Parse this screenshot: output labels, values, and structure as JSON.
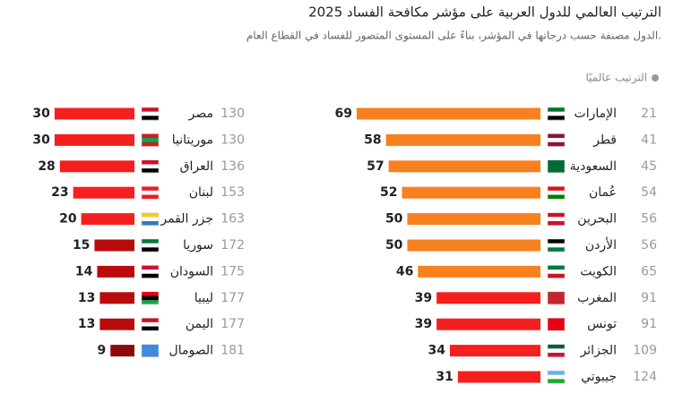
{
  "header": {
    "title": "الترتيب العالمي للدول العربية على مؤشر مكافحة الفساد 2025",
    "subtitle": "الدول مصنفة حسب درجاتها في المؤشر، بناءً على المستوى المتصور للفساد في القطاع العام.",
    "legend": "الترتيب عالميًا"
  },
  "chart_data": [
    {
      "type": "bar",
      "xlim": [
        0,
        70
      ],
      "categories": [
        "الإمارات",
        "قطر",
        "السعودية",
        "عُمان",
        "البحرين",
        "الأردن",
        "الكويت",
        "المغرب",
        "تونس",
        "الجزائر",
        "جيبوتي"
      ],
      "ranks": [
        21,
        41,
        45,
        54,
        56,
        56,
        65,
        91,
        91,
        109,
        124
      ],
      "values": [
        69,
        58,
        57,
        52,
        50,
        50,
        46,
        39,
        39,
        34,
        31
      ],
      "colors": [
        "#f7801f",
        "#f7801f",
        "#f7801f",
        "#f7801f",
        "#f7801f",
        "#f7801f",
        "#f7801f",
        "#f51f1f",
        "#f51f1f",
        "#f51f1f",
        "#f51f1f"
      ]
    },
    {
      "type": "bar",
      "xlim": [
        0,
        70
      ],
      "categories": [
        "مصر",
        "موريتانيا",
        "العراق",
        "لبنان",
        "جزر القمر",
        "سوريا",
        "السودان",
        "ليبيا",
        "اليمن",
        "الصومال"
      ],
      "ranks": [
        130,
        130,
        136,
        153,
        163,
        172,
        175,
        177,
        177,
        181
      ],
      "values": [
        30,
        30,
        28,
        23,
        20,
        15,
        14,
        13,
        13,
        9
      ],
      "colors": [
        "#f51f1f",
        "#f51f1f",
        "#f51f1f",
        "#f51f1f",
        "#f51f1f",
        "#b80c0c",
        "#b80c0c",
        "#b80c0c",
        "#b80c0c",
        "#8a0a0a"
      ]
    }
  ]
}
